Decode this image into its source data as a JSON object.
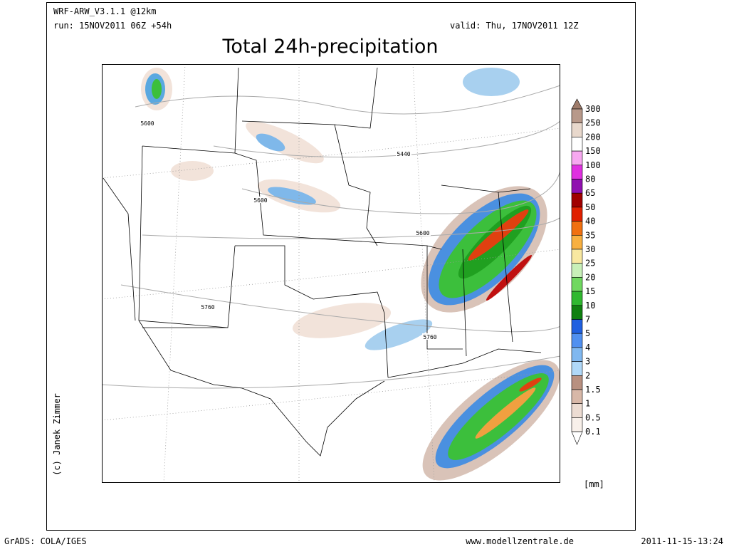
{
  "header": {
    "model": "WRF-ARW_V3.1.1 @12km",
    "run": "run: 15NOV2011 06Z +54h",
    "valid": "valid: Thu, 17NOV2011 12Z",
    "title": "Total 24h-precipitation"
  },
  "map": {
    "contour_labels": [
      "5600",
      "5440",
      "5600",
      "5600",
      "5760",
      "5760"
    ]
  },
  "legend": {
    "labels": [
      "300",
      "250",
      "200",
      "150",
      "100",
      "80",
      "65",
      "50",
      "40",
      "35",
      "30",
      "25",
      "20",
      "15",
      "10",
      "7",
      "5",
      "4",
      "3",
      "2",
      "1.5",
      "1",
      "0.5",
      "0.1"
    ],
    "unit": "[mm]"
  },
  "credit": "(c) Janek Zimmer",
  "footer": {
    "software": "GrADS: COLA/IGES",
    "site": "www.modellzentrale.de",
    "timestamp": "2011-11-15-13:24"
  }
}
